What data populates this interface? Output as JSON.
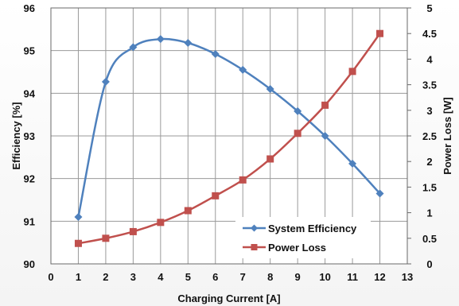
{
  "chart_data": {
    "type": "line",
    "title": "",
    "xlabel": "Charging Current [A]",
    "ylabel_left": "Efficiency [%]",
    "ylabel_right": "Power Loss [W]",
    "xlim": [
      0,
      13
    ],
    "ylim_left": [
      90,
      96
    ],
    "ylim_right": [
      0,
      5
    ],
    "x_ticks": [
      "0",
      "1",
      "2",
      "3",
      "4",
      "5",
      "6",
      "7",
      "8",
      "9",
      "10",
      "11",
      "12",
      "13"
    ],
    "y_left_ticks": [
      "90",
      "91",
      "92",
      "93",
      "94",
      "95",
      "96"
    ],
    "y_right_ticks": [
      "0",
      "0.5",
      "1",
      "1.5",
      "2",
      "2.5",
      "3",
      "3.5",
      "4",
      "4.5",
      "5"
    ],
    "grid": true,
    "legend_position": "bottom-right",
    "series": [
      {
        "name": "System Efficiency",
        "axis": "left",
        "color": "#4f81bd",
        "marker": "diamond",
        "x": [
          1,
          2,
          3,
          4,
          5,
          6,
          7,
          8,
          9,
          10,
          11,
          12
        ],
        "values": [
          91.1,
          94.27,
          95.08,
          95.27,
          95.18,
          94.92,
          94.55,
          94.1,
          93.58,
          93.0,
          92.35,
          91.65
        ]
      },
      {
        "name": "Power Loss",
        "axis": "right",
        "color": "#c0504d",
        "marker": "square",
        "x": [
          1,
          2,
          3,
          4,
          5,
          6,
          7,
          8,
          9,
          10,
          11,
          12
        ],
        "values": [
          0.4,
          0.5,
          0.63,
          0.81,
          1.04,
          1.33,
          1.64,
          2.05,
          2.55,
          3.1,
          3.76,
          4.5
        ]
      }
    ]
  }
}
